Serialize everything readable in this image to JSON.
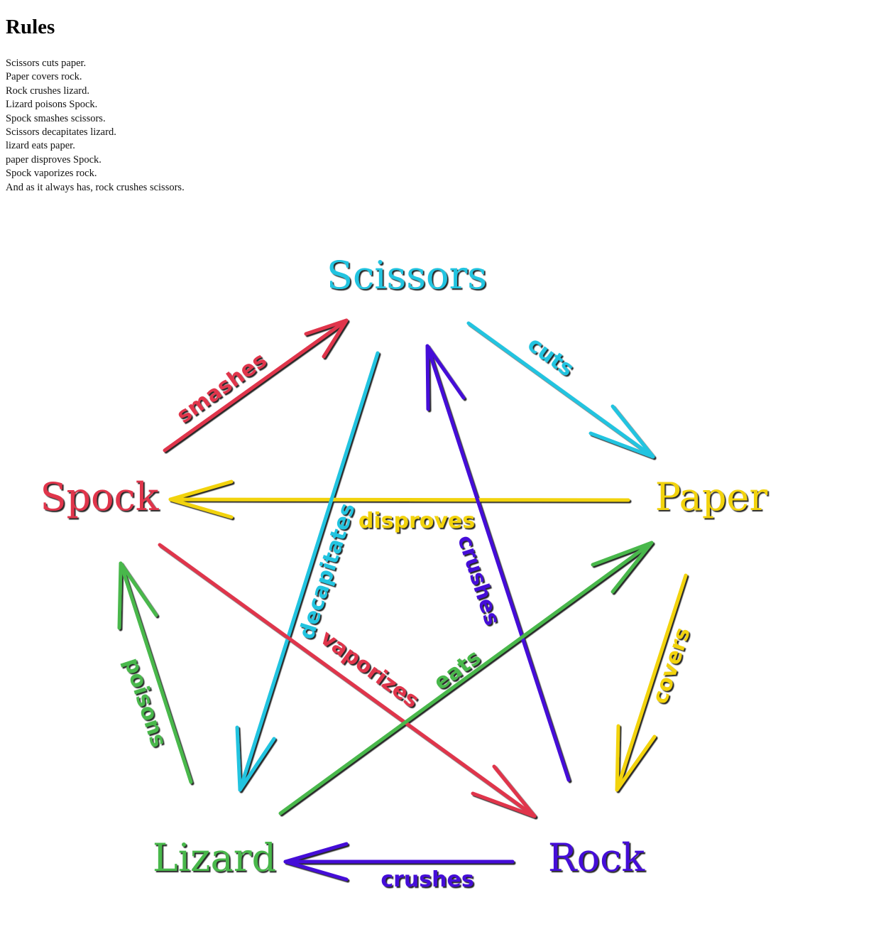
{
  "heading": "Rules",
  "rules": [
    "Scissors cuts paper.",
    "Paper covers rock.",
    "Rock crushes lizard.",
    "Lizard poisons Spock.",
    "Spock smashes scissors.",
    "Scissors decapitates lizard.",
    "lizard eats paper.",
    "paper disproves Spock.",
    "Spock vaporizes rock.",
    "And as it always has, rock crushes scissors."
  ],
  "nodes": {
    "scissors": {
      "label": "Scissors",
      "color": "#22c4e0"
    },
    "paper": {
      "label": "Paper",
      "color": "#f2d30c"
    },
    "rock": {
      "label": "Rock",
      "color": "#4410d8"
    },
    "lizard": {
      "label": "Lizard",
      "color": "#48b84c"
    },
    "spock": {
      "label": "Spock",
      "color": "#e0344c"
    }
  },
  "relations": {
    "smashes": "smashes",
    "cuts": "cuts",
    "disproves": "disproves",
    "decapitates": "decapitates",
    "crushes_scissors": "crushes",
    "poisons": "poisons",
    "covers": "covers",
    "vaporizes": "vaporizes",
    "eats": "eats",
    "crushes_lizard": "crushes"
  }
}
